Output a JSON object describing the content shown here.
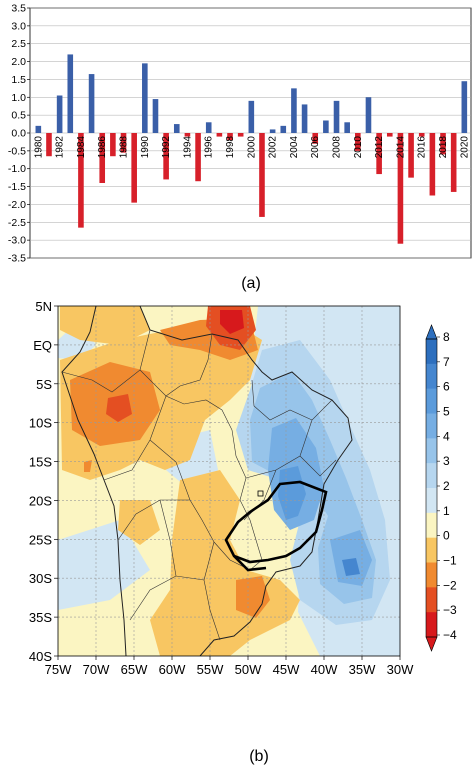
{
  "panel_a": {
    "label": "(a)",
    "chart_data": {
      "type": "bar",
      "x": [
        1980,
        1981,
        1982,
        1983,
        1984,
        1985,
        1986,
        1987,
        1988,
        1989,
        1990,
        1991,
        1992,
        1993,
        1994,
        1995,
        1996,
        1997,
        1998,
        1999,
        2000,
        2001,
        2002,
        2003,
        2004,
        2005,
        2006,
        2007,
        2008,
        2009,
        2010,
        2011,
        2012,
        2013,
        2014,
        2015,
        2016,
        2017,
        2018,
        2019,
        2020
      ],
      "values": [
        0.2,
        -0.65,
        1.05,
        2.2,
        -2.65,
        1.65,
        -1.4,
        -0.65,
        -0.55,
        -1.95,
        1.95,
        0.95,
        -1.3,
        0.25,
        -0.1,
        -1.35,
        0.3,
        -0.1,
        -0.2,
        -0.1,
        0.9,
        -2.35,
        0.1,
        0.2,
        1.25,
        0.8,
        -0.3,
        0.35,
        0.9,
        0.3,
        -0.5,
        1.0,
        -1.15,
        -0.1,
        -3.1,
        -1.25,
        -0.1,
        -1.75,
        -0.6,
        -1.65,
        1.45
      ],
      "year_labels": [
        "1980",
        "1982",
        "1984",
        "1986",
        "1988",
        "1990",
        "1992",
        "1994",
        "1996",
        "1998",
        "2000",
        "2002",
        "2004",
        "2006",
        "2008",
        "2010",
        "2012",
        "2014",
        "2016",
        "2018",
        "2020"
      ],
      "ylim": [
        -3.5,
        3.5
      ],
      "yticks": [
        "3.5",
        "3.0",
        "2.5",
        "2.0",
        "1.5",
        "1.0",
        "0.5",
        "0.0",
        "-0.5",
        "-1.0",
        "-1.5",
        "-2.0",
        "-2.5",
        "-3.0",
        "-3.5"
      ],
      "grid": true,
      "positive_color": "#3a5fa8",
      "negative_color": "#d7202a"
    }
  },
  "panel_b": {
    "label": "(b)",
    "chart_data": {
      "type": "heatmap",
      "lat_labels": [
        "5N",
        "EQ",
        "5S",
        "10S",
        "15S",
        "20S",
        "25S",
        "30S",
        "35S",
        "40S"
      ],
      "lon_labels": [
        "75W",
        "70W",
        "65W",
        "60W",
        "55W",
        "50W",
        "45W",
        "40W",
        "35W",
        "30W"
      ],
      "lon_range": [
        -75,
        -30
      ],
      "lat_range": [
        -40,
        5
      ],
      "colorbar": {
        "ticks": [
          "8",
          "7",
          "6",
          "5",
          "4",
          "3",
          "2",
          "1",
          "0",
          "−1",
          "−2",
          "−3",
          "−4"
        ],
        "colors": [
          "#2d6fbe",
          "#4586cf",
          "#5b9bdb",
          "#76aee3",
          "#97c4ea",
          "#b6d6ef",
          "#d2e6f3",
          "#fbf5c2",
          "#f8c662",
          "#f08a30",
          "#e44f22",
          "#d7191c"
        ],
        "extend": "both"
      }
    }
  }
}
